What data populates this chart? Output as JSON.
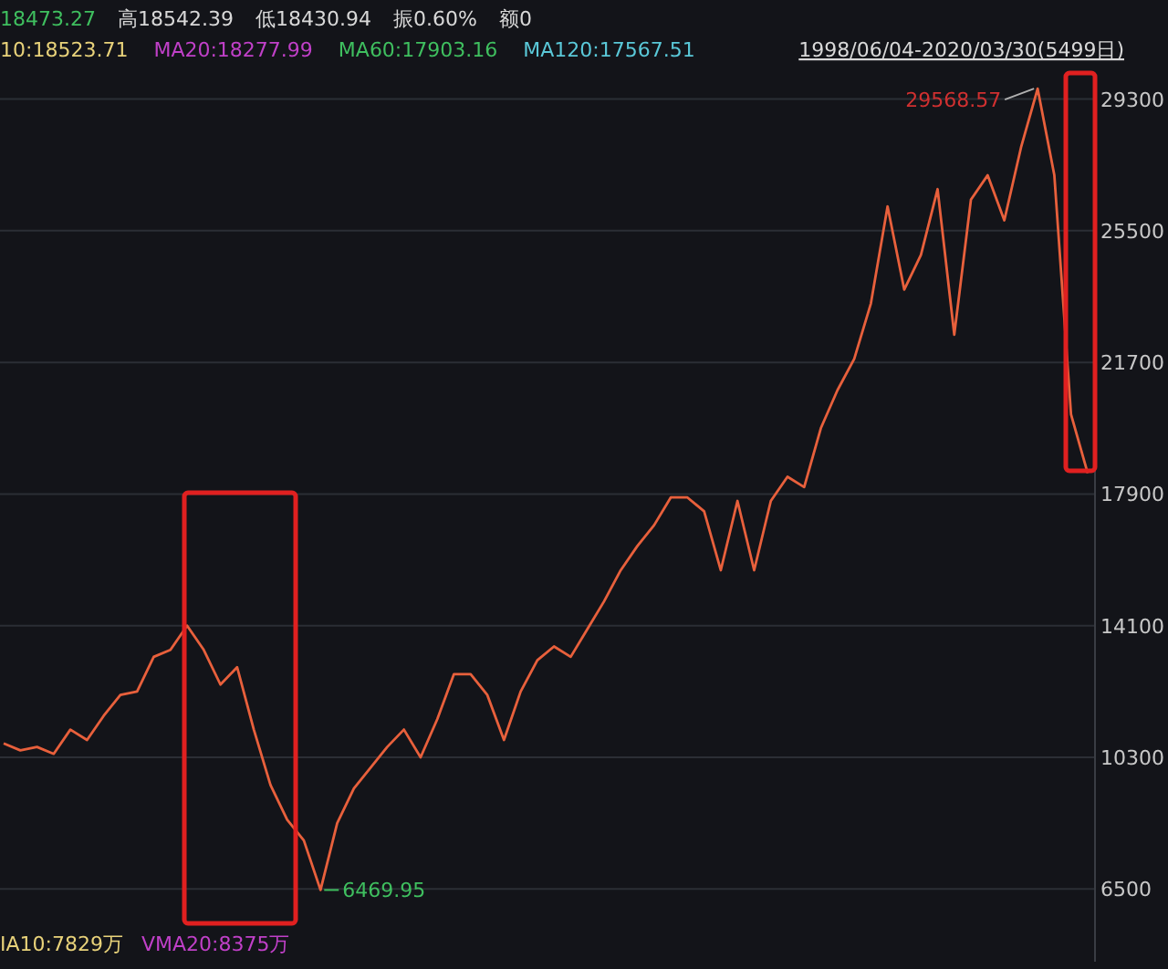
{
  "chart_data": {
    "type": "line",
    "categories": [
      null,
      null,
      null,
      null,
      null,
      null,
      null,
      null,
      null,
      null,
      null,
      null,
      null,
      null,
      null,
      null,
      null,
      null,
      null,
      null,
      null,
      null,
      null,
      null,
      null,
      null,
      null,
      null,
      null,
      null,
      null,
      null,
      null,
      null,
      null,
      null,
      null,
      null,
      null,
      null,
      null,
      null,
      null,
      null,
      null,
      null,
      null,
      null,
      null,
      null,
      null,
      null,
      null,
      null,
      null,
      null,
      null,
      null,
      null,
      null,
      null,
      null,
      null,
      null,
      null,
      null
    ],
    "series": [
      {
        "color": "#e8603c",
        "values": [
          10700,
          10500,
          10600,
          10400,
          11100,
          10800,
          11500,
          12100,
          12200,
          13200,
          13400,
          14100,
          13400,
          12400,
          12900,
          11100,
          9500,
          8500,
          7900,
          6470,
          8400,
          9400,
          10000,
          10600,
          11100,
          10300,
          11400,
          12700,
          12700,
          12100,
          10800,
          12200,
          13100,
          13500,
          13200,
          14000,
          14800,
          15700,
          16400,
          17000,
          17800,
          17800,
          17400,
          15700,
          17700,
          15700,
          17700,
          18400,
          18100,
          19800,
          20900,
          21800,
          23400,
          26200,
          23800,
          24800,
          26700,
          22500,
          26400,
          27100,
          25800,
          27900,
          29600,
          27100,
          20200,
          18500
        ]
      }
    ],
    "ylim": [
      4400,
      30000
    ],
    "yticks": [
      6500,
      10300,
      14100,
      17900,
      21700,
      25500,
      29300
    ],
    "grid": "y",
    "marker": "none",
    "annotations": [
      "18473.27",
      "高18542.39",
      "低18430.94",
      "振0.60%",
      "额0",
      "10:18523.71",
      "MA20:18277.99",
      "MA60:17903.16",
      "MA120:17567.51",
      "1998/06/04-2020/03/30(5499日)",
      "IA10:7829万",
      "VMA20:8375万",
      "29568.57",
      "6469.95"
    ]
  }
}
